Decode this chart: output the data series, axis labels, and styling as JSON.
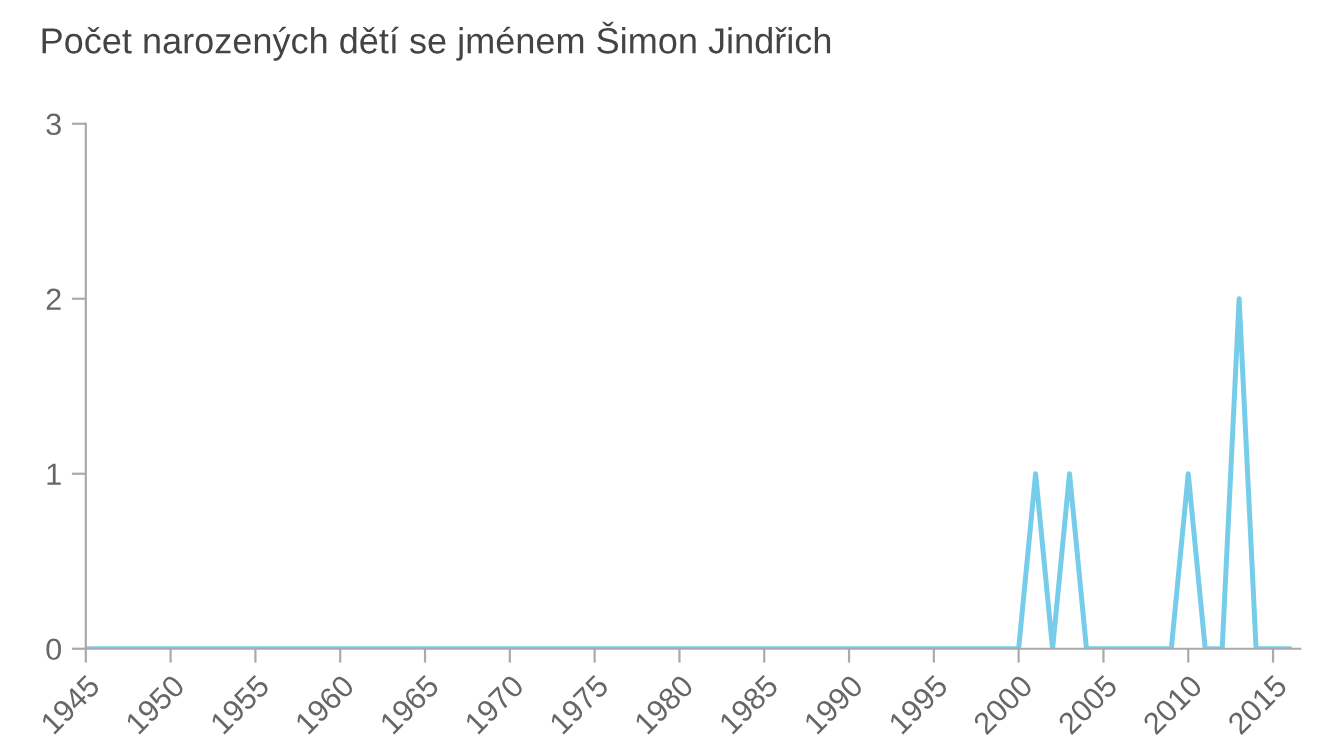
{
  "chart_data": {
    "type": "line",
    "title": "Počet narozených dětí se jménem Šimon Jindřich",
    "x": [
      1945,
      2000,
      2001,
      2002,
      2003,
      2004,
      2009,
      2010,
      2011,
      2012,
      2013,
      2014,
      2016
    ],
    "series": [
      {
        "color": "#76cde9",
        "values": [
          0,
          0,
          1,
          0,
          1,
          0,
          0,
          1,
          0,
          0,
          2,
          0,
          0
        ]
      }
    ],
    "xlim": [
      1945,
      2016.6
    ],
    "xticks": [
      1945,
      1950,
      1955,
      1960,
      1965,
      1970,
      1975,
      1980,
      1985,
      1990,
      1995,
      2000,
      2005,
      2010,
      2015
    ],
    "ylim": [
      0,
      3
    ],
    "yticks": [
      0,
      1,
      2,
      3
    ],
    "grid": false,
    "legend": false,
    "marker": "none",
    "line_style": "solid"
  }
}
